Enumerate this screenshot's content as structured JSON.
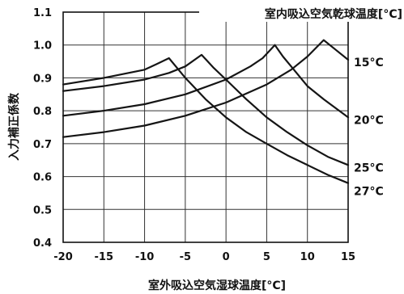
{
  "chart_data": {
    "type": "line",
    "xlabel": "室外吸込空気湿球温度[°C]",
    "ylabel": "入力補正係数",
    "legend_title": "室内吸込空気乾球温度[°C]",
    "xlim": [
      -20,
      15
    ],
    "ylim": [
      0.4,
      1.1
    ],
    "xticks": [
      -20,
      -15,
      -10,
      -5,
      0,
      5,
      10,
      15
    ],
    "xtick_labels": [
      "-20",
      "-15",
      "-10",
      "-5",
      "0",
      "5",
      "10",
      "15"
    ],
    "yticks": [
      0.4,
      0.5,
      0.6,
      0.7,
      0.8,
      0.9,
      1.0,
      1.1
    ],
    "ytick_labels": [
      "0.4",
      "0.5",
      "0.6",
      "0.7",
      "0.8",
      "0.9",
      "1.0",
      "1.1"
    ],
    "grid": true,
    "colors": {
      "line": "#151515",
      "grid": "#333333",
      "background": "#ffffff"
    },
    "series": [
      {
        "name": "15°C",
        "x": [
          -20,
          -15,
          -10,
          -5,
          0,
          5,
          8,
          10,
          12,
          13.5,
          15
        ],
        "y": [
          0.72,
          0.735,
          0.755,
          0.785,
          0.825,
          0.88,
          0.925,
          0.965,
          1.015,
          0.985,
          0.955
        ]
      },
      {
        "name": "20°C",
        "x": [
          -20,
          -15,
          -10,
          -5,
          0,
          3,
          4.5,
          6,
          7,
          8,
          10,
          12,
          15
        ],
        "y": [
          0.785,
          0.8,
          0.82,
          0.85,
          0.895,
          0.935,
          0.96,
          1.0,
          0.965,
          0.935,
          0.875,
          0.835,
          0.78
        ]
      },
      {
        "name": "25°C",
        "x": [
          -20,
          -15,
          -10,
          -7,
          -5,
          -3,
          -1.5,
          0,
          2.5,
          5,
          7.5,
          10,
          12.5,
          15
        ],
        "y": [
          0.86,
          0.875,
          0.895,
          0.915,
          0.935,
          0.97,
          0.93,
          0.895,
          0.835,
          0.78,
          0.735,
          0.695,
          0.66,
          0.635
        ]
      },
      {
        "name": "27°C",
        "x": [
          -20,
          -15,
          -10,
          -8.5,
          -7,
          -6,
          -5,
          -2.5,
          0,
          2.5,
          5,
          7.5,
          10,
          12.5,
          15
        ],
        "y": [
          0.88,
          0.9,
          0.925,
          0.942,
          0.96,
          0.93,
          0.9,
          0.835,
          0.78,
          0.735,
          0.7,
          0.665,
          0.635,
          0.605,
          0.58
        ]
      }
    ]
  }
}
